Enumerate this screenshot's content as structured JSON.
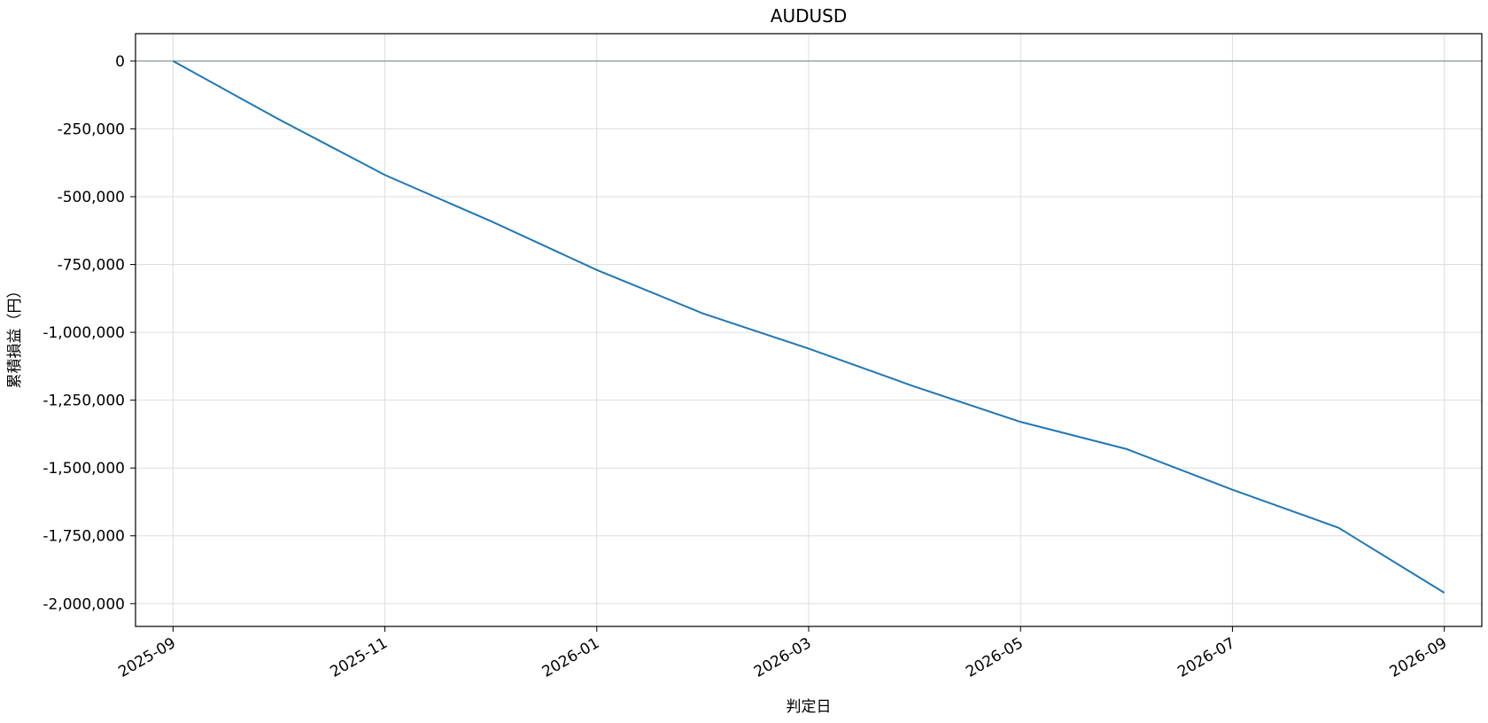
{
  "chart_data": {
    "type": "line",
    "title": "AUDUSD",
    "x_label": "判定日",
    "y_label": "累積損益（円）",
    "x": [
      "2025-09",
      "2025-10",
      "2025-11",
      "2025-12",
      "2026-01",
      "2026-02",
      "2026-03",
      "2026-04",
      "2026-05",
      "2026-06",
      "2026-07",
      "2026-08",
      "2026-09"
    ],
    "series": [
      {
        "name": "AUDUSD",
        "color": "#1f77b4",
        "values": [
          0,
          -215000,
          -420000,
          -590000,
          -770000,
          -930000,
          -1060000,
          -1200000,
          -1330000,
          -1430000,
          -1580000,
          -1720000,
          -1960000
        ]
      }
    ],
    "ylim": [
      -2084000,
      101000
    ],
    "yticks": [
      0,
      {
        "value": -250000,
        "label": "-250,000"
      },
      {
        "value": -500000,
        "label": "-500,000"
      },
      {
        "value": -750000,
        "label": "-750,000"
      },
      {
        "value": -1000000,
        "label": "-1,000,000"
      },
      {
        "value": -1250000,
        "label": "-1,250,000"
      },
      {
        "value": -1500000,
        "label": "-1,500,000"
      },
      {
        "value": -1750000,
        "label": "-1,750,000"
      },
      {
        "value": -2000000,
        "label": "-2,000,000"
      }
    ],
    "xticks": [
      "2025-09",
      "2025-11",
      "2026-01",
      "2026-03",
      "2026-05",
      "2026-07",
      "2026-09"
    ],
    "grid": true
  }
}
